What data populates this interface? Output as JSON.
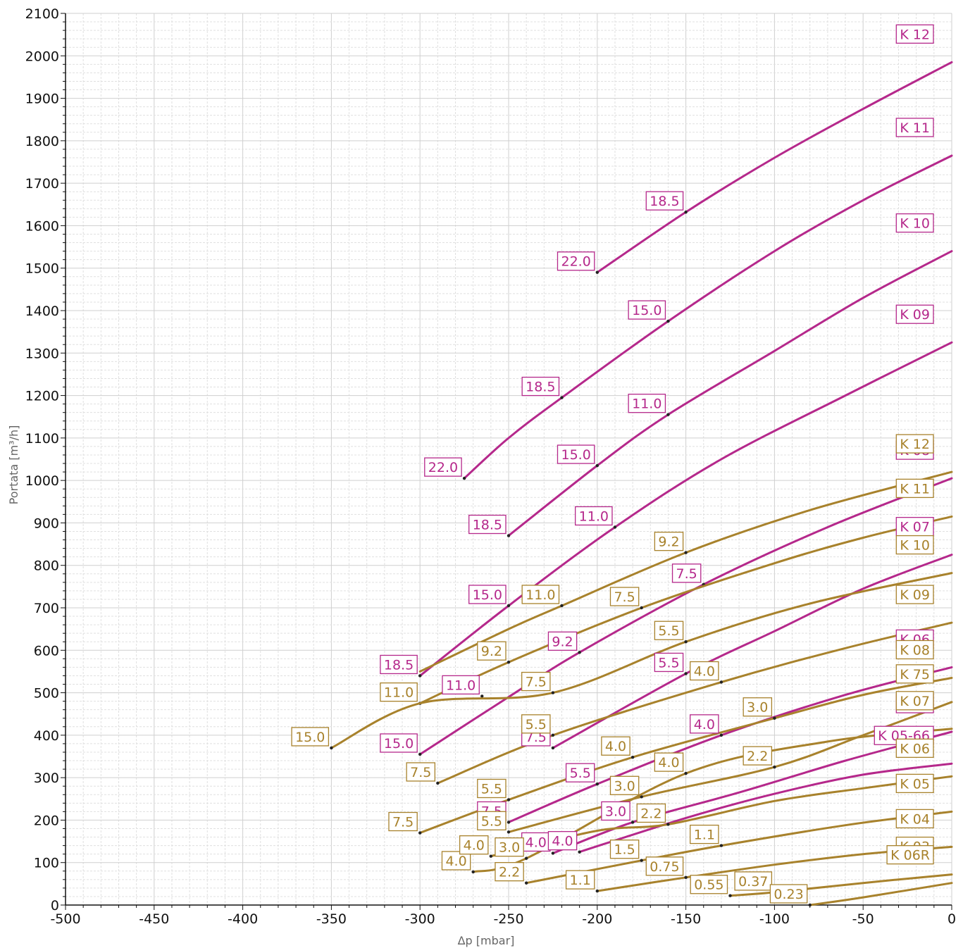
{
  "chart_data": {
    "type": "line",
    "xlabel": "Δp [mbar]",
    "ylabel": "Portata [m³/h]",
    "xlim": [
      -500,
      0
    ],
    "ylim": [
      0,
      2100
    ],
    "xticks": [
      "-500",
      "-450",
      "-400",
      "-350",
      "-300",
      "-250",
      "-200",
      "-150",
      "-100",
      "-50",
      "0"
    ],
    "yticks": [
      "0",
      "100",
      "200",
      "300",
      "400",
      "500",
      "600",
      "700",
      "800",
      "900",
      "1000",
      "1100",
      "1200",
      "1300",
      "1400",
      "1500",
      "1600",
      "1700",
      "1800",
      "1900",
      "2000",
      "2100"
    ],
    "grid": true,
    "colors": {
      "magenta": "#b5288b",
      "gold": "#a8822c"
    },
    "series": [
      {
        "name": "K 12",
        "color": "magenta",
        "points": [
          [
            -200,
            1490
          ],
          [
            -150,
            1632
          ],
          [
            -100,
            1760
          ],
          [
            -50,
            1875
          ],
          [
            0,
            1985
          ]
        ],
        "point_labels": [
          [
            "22.0",
            -200,
            1490
          ],
          [
            "18.5",
            -150,
            1632
          ]
        ]
      },
      {
        "name": "K 11",
        "color": "magenta",
        "points": [
          [
            -275,
            1005
          ],
          [
            -250,
            1100
          ],
          [
            -220,
            1195
          ],
          [
            -160,
            1375
          ],
          [
            -100,
            1540
          ],
          [
            -50,
            1660
          ],
          [
            0,
            1765
          ]
        ],
        "point_labels": [
          [
            "22.0",
            -275,
            1005
          ],
          [
            "18.5",
            -220,
            1195
          ],
          [
            "15.0",
            -160,
            1375
          ]
        ]
      },
      {
        "name": "K 10",
        "color": "magenta",
        "points": [
          [
            -250,
            870
          ],
          [
            -200,
            1035
          ],
          [
            -160,
            1155
          ],
          [
            -100,
            1305
          ],
          [
            -50,
            1430
          ],
          [
            0,
            1540
          ]
        ],
        "point_labels": [
          [
            "18.5",
            -250,
            870
          ],
          [
            "15.0",
            -200,
            1035
          ],
          [
            "11.0",
            -160,
            1155
          ]
        ]
      },
      {
        "name": "K 09",
        "color": "magenta",
        "points": [
          [
            -300,
            540
          ],
          [
            -250,
            705
          ],
          [
            -190,
            890
          ],
          [
            -130,
            1050
          ],
          [
            -60,
            1200
          ],
          [
            0,
            1325
          ]
        ],
        "point_labels": [
          [
            "18.5",
            -300,
            540
          ],
          [
            "15.0",
            -250,
            705
          ],
          [
            "11.0",
            -190,
            890
          ]
        ]
      },
      {
        "name": "K 08",
        "color": "magenta",
        "points": [
          [
            -300,
            355
          ],
          [
            -250,
            490
          ],
          [
            -210,
            595
          ],
          [
            -140,
            755
          ],
          [
            -70,
            890
          ],
          [
            0,
            1005
          ]
        ],
        "point_labels": [
          [
            "15.0",
            -300,
            355
          ],
          [
            "11.0",
            -265,
            492
          ],
          [
            "9.2",
            -210,
            595
          ],
          [
            "7.5",
            -140,
            755
          ]
        ]
      },
      {
        "name": "K 07",
        "color": "magenta",
        "points": [
          [
            -225,
            370
          ],
          [
            -150,
            545
          ],
          [
            -100,
            645
          ],
          [
            -50,
            745
          ],
          [
            0,
            825
          ]
        ],
        "point_labels": [
          [
            "7.5",
            -225,
            370
          ],
          [
            "5.5",
            -150,
            545
          ]
        ]
      },
      {
        "name": "K 06",
        "color": "magenta",
        "points": [
          [
            -250,
            195
          ],
          [
            -200,
            285
          ],
          [
            -130,
            400
          ],
          [
            -60,
            495
          ],
          [
            0,
            560
          ]
        ],
        "point_labels": [
          [
            "7.5",
            -250,
            195
          ],
          [
            "5.5",
            -200,
            285
          ],
          [
            "4.0",
            -130,
            400
          ]
        ]
      },
      {
        "name": "K 05",
        "color": "magenta",
        "points": [
          [
            -225,
            122
          ],
          [
            -180,
            195
          ],
          [
            -120,
            265
          ],
          [
            -60,
            340
          ],
          [
            0,
            408
          ]
        ],
        "point_labels": [
          [
            "4.0",
            -225,
            122
          ],
          [
            "3.0",
            -180,
            195
          ]
        ]
      },
      {
        "name": "K 05-66",
        "color": "magenta",
        "points": [
          [
            -210,
            125
          ],
          [
            -150,
            205
          ],
          [
            -100,
            262
          ],
          [
            -50,
            307
          ],
          [
            0,
            333
          ]
        ],
        "point_labels": [
          [
            "4.0",
            -210,
            125
          ]
        ]
      },
      {
        "name": "K 12",
        "color": "gold",
        "points": [
          [
            -300,
            550
          ],
          [
            -250,
            650
          ],
          [
            -220,
            705
          ],
          [
            -150,
            830
          ],
          [
            -80,
            930
          ],
          [
            0,
            1020
          ]
        ],
        "point_labels": [
          [
            "11.0",
            -220,
            705
          ],
          [
            "9.2",
            -150,
            830
          ]
        ]
      },
      {
        "name": "K 11",
        "color": "gold",
        "points": [
          [
            -300,
            475
          ],
          [
            -250,
            572
          ],
          [
            -175,
            700
          ],
          [
            -100,
            805
          ],
          [
            -50,
            865
          ],
          [
            0,
            915
          ]
        ],
        "point_labels": [
          [
            "11.0",
            -300,
            475
          ],
          [
            "9.2",
            -250,
            572
          ],
          [
            "7.5",
            -175,
            700
          ]
        ]
      },
      {
        "name": "K 10",
        "color": "gold",
        "points": [
          [
            -350,
            370
          ],
          [
            -300,
            475
          ],
          [
            -225,
            500
          ],
          [
            -150,
            620
          ],
          [
            -80,
            710
          ],
          [
            0,
            782
          ]
        ],
        "point_labels": [
          [
            "15.0",
            -350,
            370
          ],
          [
            "7.5",
            -225,
            500
          ],
          [
            "5.5",
            -150,
            620
          ]
        ]
      },
      {
        "name": "K 09",
        "color": "gold",
        "points": [
          [
            -290,
            287
          ],
          [
            -225,
            400
          ],
          [
            -130,
            525
          ],
          [
            -60,
            605
          ],
          [
            0,
            665
          ]
        ],
        "point_labels": [
          [
            "7.5",
            -290,
            287
          ],
          [
            "5.5",
            -225,
            400
          ],
          [
            "4.0",
            -130,
            525
          ]
        ]
      },
      {
        "name": "K 08",
        "color": "gold",
        "points": [
          [
            -300,
            170
          ],
          [
            -250,
            248
          ],
          [
            -180,
            348
          ],
          [
            -100,
            440
          ],
          [
            -50,
            495
          ],
          [
            0,
            535
          ]
        ],
        "point_labels": [
          [
            "7.5",
            -300,
            170
          ],
          [
            "5.5",
            -250,
            248
          ],
          [
            "4.0",
            -180,
            348
          ],
          [
            "3.0",
            -100,
            440
          ]
        ]
      },
      {
        "name": "K 75",
        "color": "gold",
        "points": [
          [
            -250,
            172
          ],
          [
            -175,
            255
          ],
          [
            -100,
            325
          ],
          [
            -50,
            400
          ],
          [
            0,
            478
          ]
        ],
        "point_labels": [
          [
            "5.5",
            -250,
            172
          ],
          [
            "3.0",
            -175,
            255
          ],
          [
            "2.2",
            -100,
            325
          ]
        ]
      },
      {
        "name": "K 07",
        "color": "gold",
        "points": [
          [
            -270,
            78
          ],
          [
            -240,
            110
          ],
          [
            -150,
            310
          ],
          [
            -70,
            385
          ],
          [
            0,
            415
          ]
        ],
        "point_labels": [
          [
            "4.0",
            -270,
            78
          ],
          [
            "3.0",
            -240,
            110
          ],
          [
            "4.0",
            -150,
            310
          ]
        ]
      },
      {
        "name": "K 06",
        "color": "gold",
        "points": [
          [
            -260,
            115
          ],
          [
            -200,
            175
          ],
          [
            -160,
            190
          ],
          [
            -100,
            245
          ],
          [
            -50,
            275
          ],
          [
            0,
            303
          ]
        ],
        "point_labels": [
          [
            "4.0",
            -260,
            115
          ],
          [
            "2.2",
            -160,
            190
          ]
        ]
      },
      {
        "name": "K 05",
        "color": "gold",
        "points": [
          [
            -240,
            52
          ],
          [
            -175,
            105
          ],
          [
            -130,
            140
          ],
          [
            -60,
            188
          ],
          [
            0,
            220
          ]
        ],
        "point_labels": [
          [
            "2.2",
            -240,
            52
          ],
          [
            "1.5",
            -175,
            105
          ],
          [
            "1.1",
            -130,
            140
          ]
        ]
      },
      {
        "name": "K 04",
        "color": "gold",
        "points": [
          [
            -200,
            33
          ],
          [
            -150,
            65
          ],
          [
            -100,
            95
          ],
          [
            -50,
            120
          ],
          [
            0,
            137
          ]
        ],
        "point_labels": [
          [
            "1.1",
            -200,
            33
          ],
          [
            "0.75",
            -150,
            65
          ]
        ]
      },
      {
        "name": "K 03",
        "color": "gold",
        "points": [
          [
            -125,
            22
          ],
          [
            -100,
            30
          ],
          [
            -50,
            52
          ],
          [
            0,
            72
          ]
        ],
        "point_labels": [
          [
            "0.55",
            -125,
            22
          ],
          [
            "0.37",
            -100,
            30
          ]
        ]
      },
      {
        "name": "K 06R",
        "color": "gold",
        "points": [
          [
            -80,
            0
          ],
          [
            -50,
            18
          ],
          [
            0,
            52
          ]
        ],
        "point_labels": [
          [
            "0.23",
            -80,
            0
          ]
        ]
      }
    ]
  }
}
